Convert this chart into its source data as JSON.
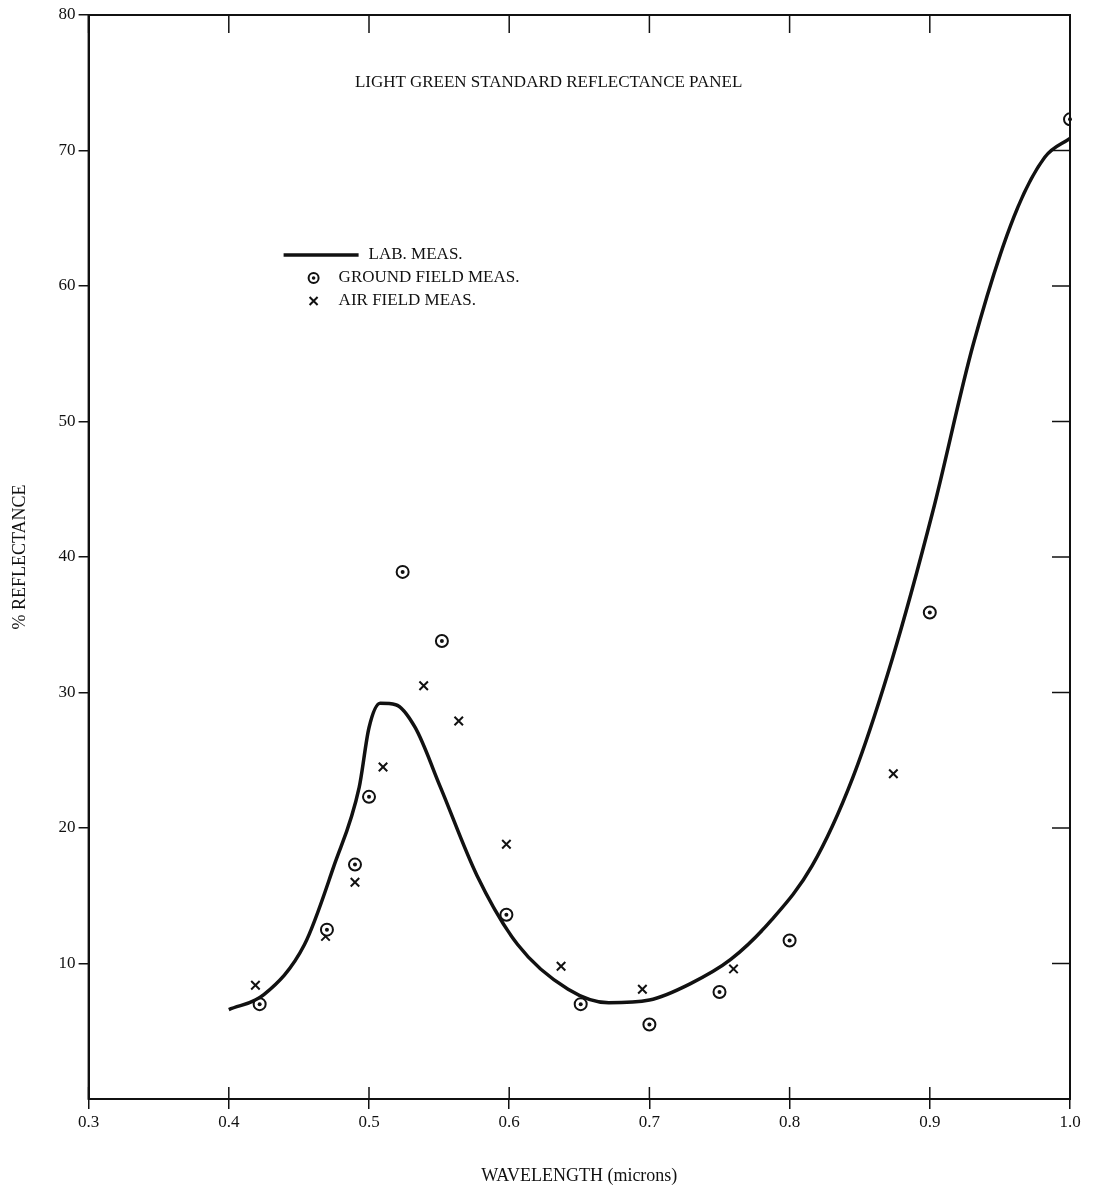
{
  "chart_data": {
    "type": "scatter",
    "title": "LIGHT GREEN STANDARD REFLECTANCE PANEL",
    "xlabel": "WAVELENGTH (microns)",
    "ylabel": "% REFLECTANCE",
    "xlim": [
      0.3,
      1.0
    ],
    "xticks": [
      0.3,
      0.4,
      0.5,
      0.6,
      0.7,
      0.8,
      0.9,
      {
        "value": 1.0,
        "label": "1.0"
      }
    ],
    "ylim": [
      0,
      80
    ],
    "yticks": [
      10,
      20,
      30,
      40,
      50,
      60,
      70,
      80
    ],
    "grid": false,
    "legend": "top left",
    "series": [
      {
        "name": "LAB. MEAS.",
        "type": "line",
        "color": "#111111",
        "marker": "none",
        "line_style": "solid",
        "x": [
          0.4,
          0.425,
          0.454,
          0.475,
          0.493,
          0.5,
          0.508,
          0.519,
          0.533,
          0.551,
          0.577,
          0.606,
          0.642,
          0.671,
          0.7,
          0.729,
          0.758,
          0.787,
          0.816,
          0.845,
          0.873,
          0.902,
          0.931,
          0.96,
          0.982,
          1.0
        ],
        "values": [
          6.6,
          7.7,
          11.4,
          17.2,
          23.0,
          27.4,
          29.2,
          29.1,
          27.4,
          23.0,
          16.5,
          11.4,
          8.1,
          7.1,
          7.3,
          8.5,
          10.3,
          13.2,
          17.2,
          23.7,
          32.4,
          43.3,
          55.7,
          65.1,
          69.5,
          70.9
        ]
      },
      {
        "name": "GROUND FIELD MEAS.",
        "type": "scatter",
        "color": "#111111",
        "marker": "circle",
        "x": [
          0.422,
          0.47,
          0.49,
          0.5,
          0.524,
          0.552,
          0.598,
          0.651,
          0.7,
          0.75,
          0.8,
          0.9,
          1.0
        ],
        "values": [
          7.0,
          12.5,
          17.3,
          22.3,
          38.9,
          33.8,
          13.6,
          7.0,
          5.5,
          7.9,
          11.7,
          35.9,
          72.3
        ]
      },
      {
        "name": "AIR FIELD MEAS.",
        "type": "scatter",
        "color": "#111111",
        "marker": "cross",
        "x": [
          0.419,
          0.469,
          0.49,
          0.51,
          0.539,
          0.564,
          0.598,
          0.637,
          0.695,
          0.76,
          0.874
        ],
        "values": [
          8.4,
          12.0,
          16.0,
          24.5,
          30.5,
          27.9,
          18.8,
          9.8,
          8.1,
          9.6,
          24.0
        ]
      }
    ]
  }
}
